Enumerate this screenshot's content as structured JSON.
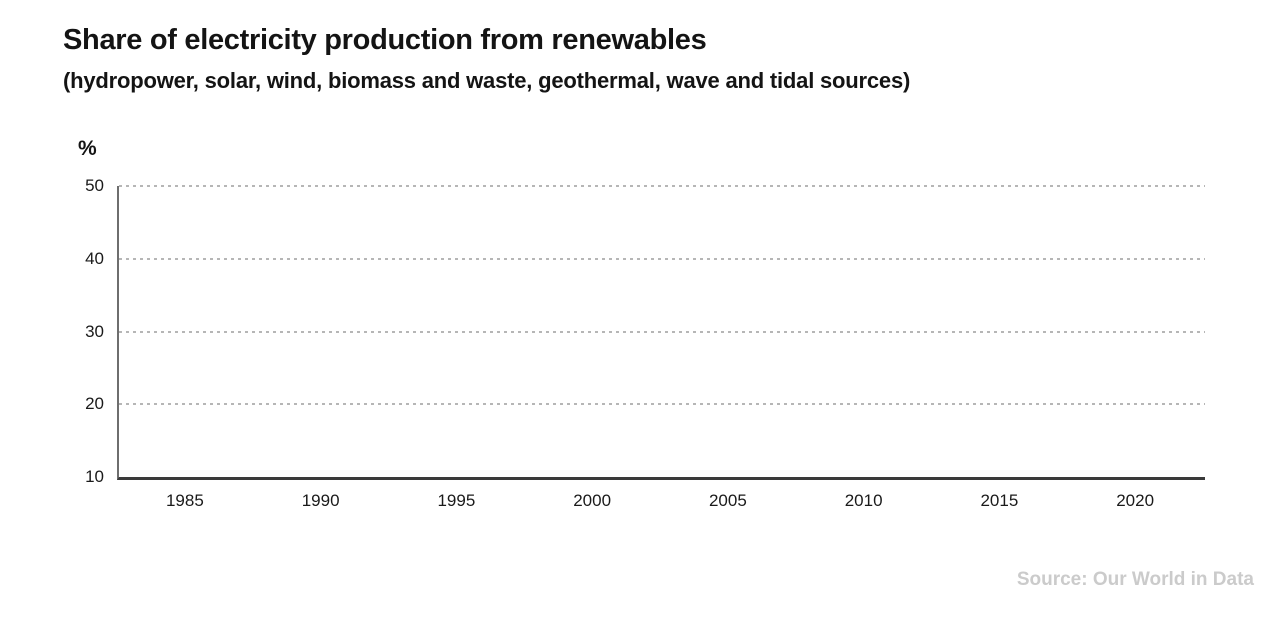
{
  "header": {
    "title": "Share of electricity production from renewables",
    "subtitle": "(hydropower, solar, wind, biomass and waste, geothermal, wave and tidal sources)"
  },
  "footer": {
    "source": "Source: Our World in Data"
  },
  "chart_data": {
    "type": "line",
    "title": "Share of electricity production from renewables",
    "subtitle": "(hydropower, solar, wind, biomass and waste, geothermal, wave and tidal sources)",
    "xlabel": "",
    "ylabel": "%",
    "ylim": [
      10,
      50
    ],
    "xlim": [
      1982.5,
      2022.5
    ],
    "yticks": [
      10,
      20,
      30,
      40,
      50
    ],
    "xticks": [
      1985,
      1990,
      1995,
      2000,
      2005,
      2010,
      2015,
      2020
    ],
    "grid": "horizontal-dashed",
    "legend": "none",
    "series": []
  },
  "colors": {
    "background": "#ffffff",
    "title_text": "#141414",
    "tick_label_text": "#1a1a1a",
    "y_axis_line": "#6e6e6e",
    "x_axis_line": "#3a3a3a",
    "gridline": "#b6b6b6",
    "source_text": "#cbcbcb"
  }
}
